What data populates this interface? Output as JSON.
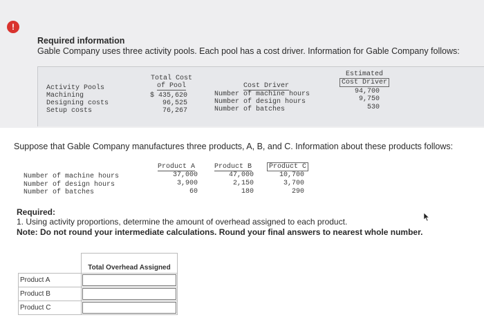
{
  "alert_icon": "!",
  "header": {
    "title": "Required information",
    "intro": "Gable Company uses three activity pools. Each pool has a cost driver. Information for Gable Company follows:"
  },
  "pools_table": {
    "col_headers": {
      "activity": "Activity Pools",
      "total_cost_1": "Total Cost",
      "total_cost_2": "of Pool",
      "cost_driver": "Cost Driver",
      "estimated_1": "Estimated",
      "estimated_2": "Cost Driver"
    },
    "rows": [
      {
        "pool": "Machining",
        "cost": "$ 435,620",
        "driver": "Number of machine hours",
        "estimate": "94,700"
      },
      {
        "pool": "Designing costs",
        "cost": "96,525",
        "driver": "Number of design hours",
        "estimate": "9,750"
      },
      {
        "pool": "Setup costs",
        "cost": "76,267",
        "driver": "Number of batches",
        "estimate": "530"
      }
    ]
  },
  "suppose_text": "Suppose that Gable Company manufactures three products, A, B, and C. Information about these products follows:",
  "products_table": {
    "headers": [
      "Product A",
      "Product B",
      "Product C"
    ],
    "rows": [
      {
        "label": "Number of machine hours",
        "values": [
          "37,000",
          "47,000",
          "10,700"
        ]
      },
      {
        "label": "Number of design hours",
        "values": [
          "3,900",
          "2,150",
          "3,700"
        ]
      },
      {
        "label": "Number of batches",
        "values": [
          "60",
          "180",
          "290"
        ]
      }
    ]
  },
  "required": {
    "title": "Required:",
    "text": "1. Using activity proportions, determine the amount of overhead assigned to each product.",
    "note": "Note: Do not round your intermediate calculations. Round your final answers to nearest whole number."
  },
  "answer_table": {
    "header": "Total Overhead Assigned",
    "rows": [
      "Product A",
      "Product B",
      "Product C"
    ],
    "values": [
      "",
      "",
      ""
    ]
  }
}
